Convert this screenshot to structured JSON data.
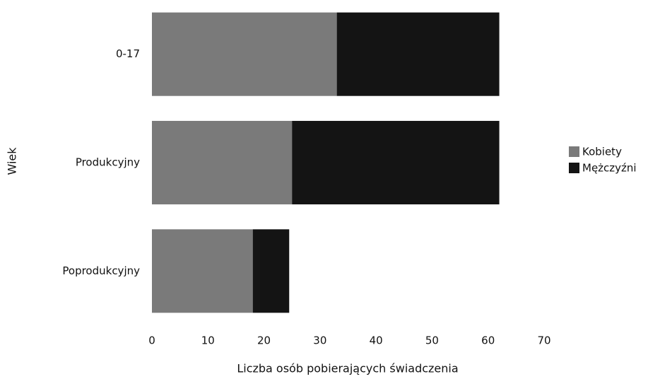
{
  "chart_data": {
    "type": "stacked-barh",
    "categories": [
      "0-17",
      "Produkcyjny",
      "Poprodukcyjny"
    ],
    "series": [
      {
        "name": "Kobiety",
        "color": "#7a7a7a",
        "values": [
          33,
          25,
          18
        ]
      },
      {
        "name": "Mężczyźni",
        "color": "#141414",
        "values": [
          29,
          37,
          6.5
        ]
      }
    ],
    "xlabel": "Liczba osób pobierających świadczenia",
    "ylabel": "Wiek",
    "xlim": [
      0,
      70
    ],
    "xticks": [
      0,
      10,
      20,
      30,
      40,
      50,
      60,
      70
    ],
    "grid": false,
    "legend": "right"
  }
}
